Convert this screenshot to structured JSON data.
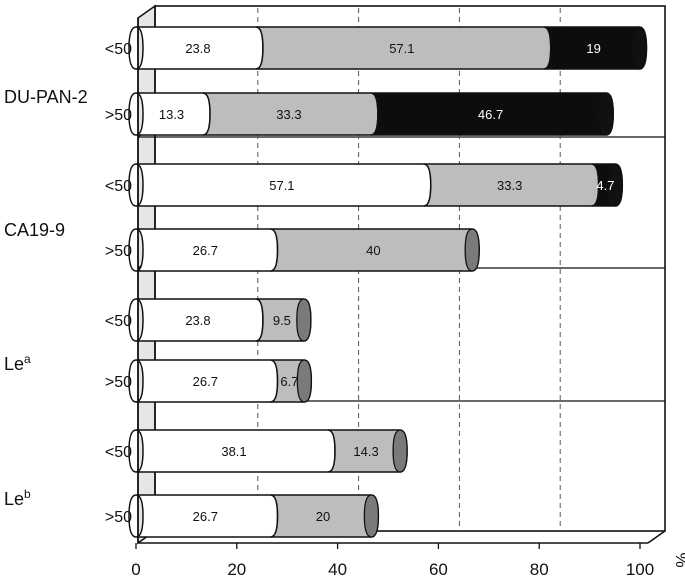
{
  "chart_data": {
    "type": "bar",
    "orientation": "horizontal",
    "stacked": true,
    "style": "3d-cylinder",
    "groups": [
      {
        "name": "DU-PAN-2",
        "name_main": "DU-PAN-2",
        "name_sup": "",
        "rows": [
          {
            "label": "<50",
            "values": [
              23.8,
              57.1,
              19
            ]
          },
          {
            "label": ">50",
            "values": [
              13.3,
              33.3,
              46.7
            ]
          }
        ]
      },
      {
        "name": "CA19-9",
        "name_main": "CA19-9",
        "name_sup": "",
        "rows": [
          {
            "label": "<50",
            "values": [
              57.1,
              33.3,
              4.7
            ]
          },
          {
            "label": ">50",
            "values": [
              26.7,
              40
            ]
          }
        ]
      },
      {
        "name": "Lea",
        "name_main": "Le",
        "name_sup": "a",
        "rows": [
          {
            "label": "<50",
            "values": [
              23.8,
              9.5
            ]
          },
          {
            "label": ">50",
            "values": [
              26.7,
              6.7
            ]
          }
        ]
      },
      {
        "name": "Leb",
        "name_main": "Le",
        "name_sup": "b",
        "rows": [
          {
            "label": "<50",
            "values": [
              38.1,
              14.3
            ]
          },
          {
            "label": ">50",
            "values": [
              26.7,
              20
            ]
          }
        ]
      }
    ],
    "segment_colors": [
      "#ffffff",
      "#bdbdbd",
      "#0d0d0d"
    ],
    "xlim": [
      0,
      100
    ],
    "xticks": [
      0,
      20,
      40,
      60,
      80,
      100
    ],
    "x_unit": "%",
    "grid": "vertical-dashed"
  }
}
